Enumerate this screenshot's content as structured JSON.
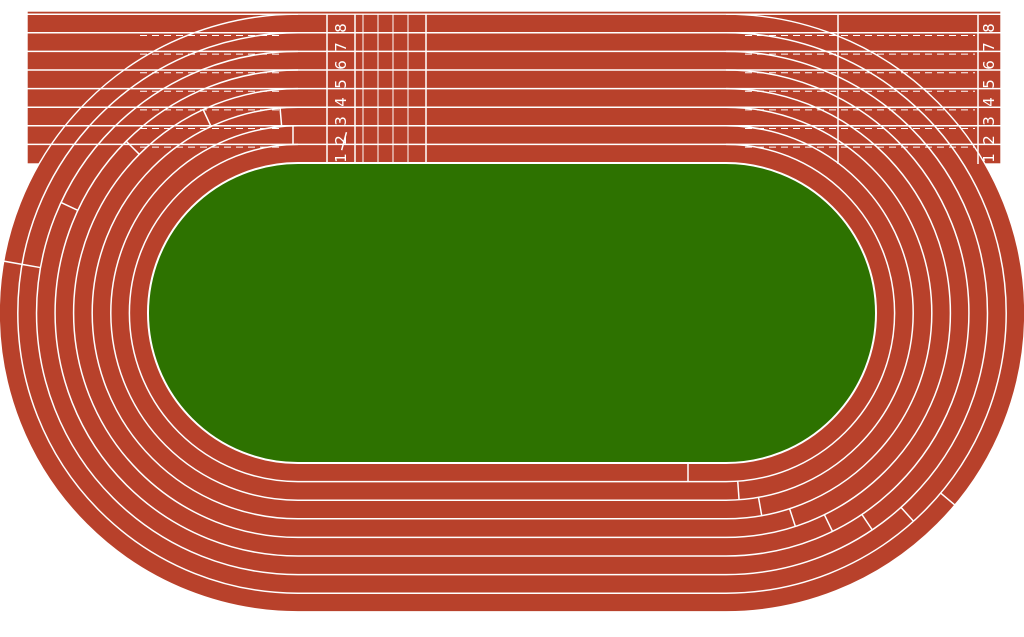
{
  "image": {
    "subject": "Athletics running track, top-down",
    "lane_count": 8
  },
  "colors": {
    "track": "#b8412b",
    "infield": "#2d7200",
    "lines": "#ffffff",
    "background": "#ffffff"
  },
  "start_lanes": {
    "numbers": [
      "1",
      "2",
      "3",
      "4",
      "5",
      "6",
      "7",
      "8"
    ]
  },
  "finish_lanes": {
    "numbers": [
      "1",
      "2",
      "3",
      "4",
      "5",
      "6",
      "7",
      "8"
    ]
  }
}
